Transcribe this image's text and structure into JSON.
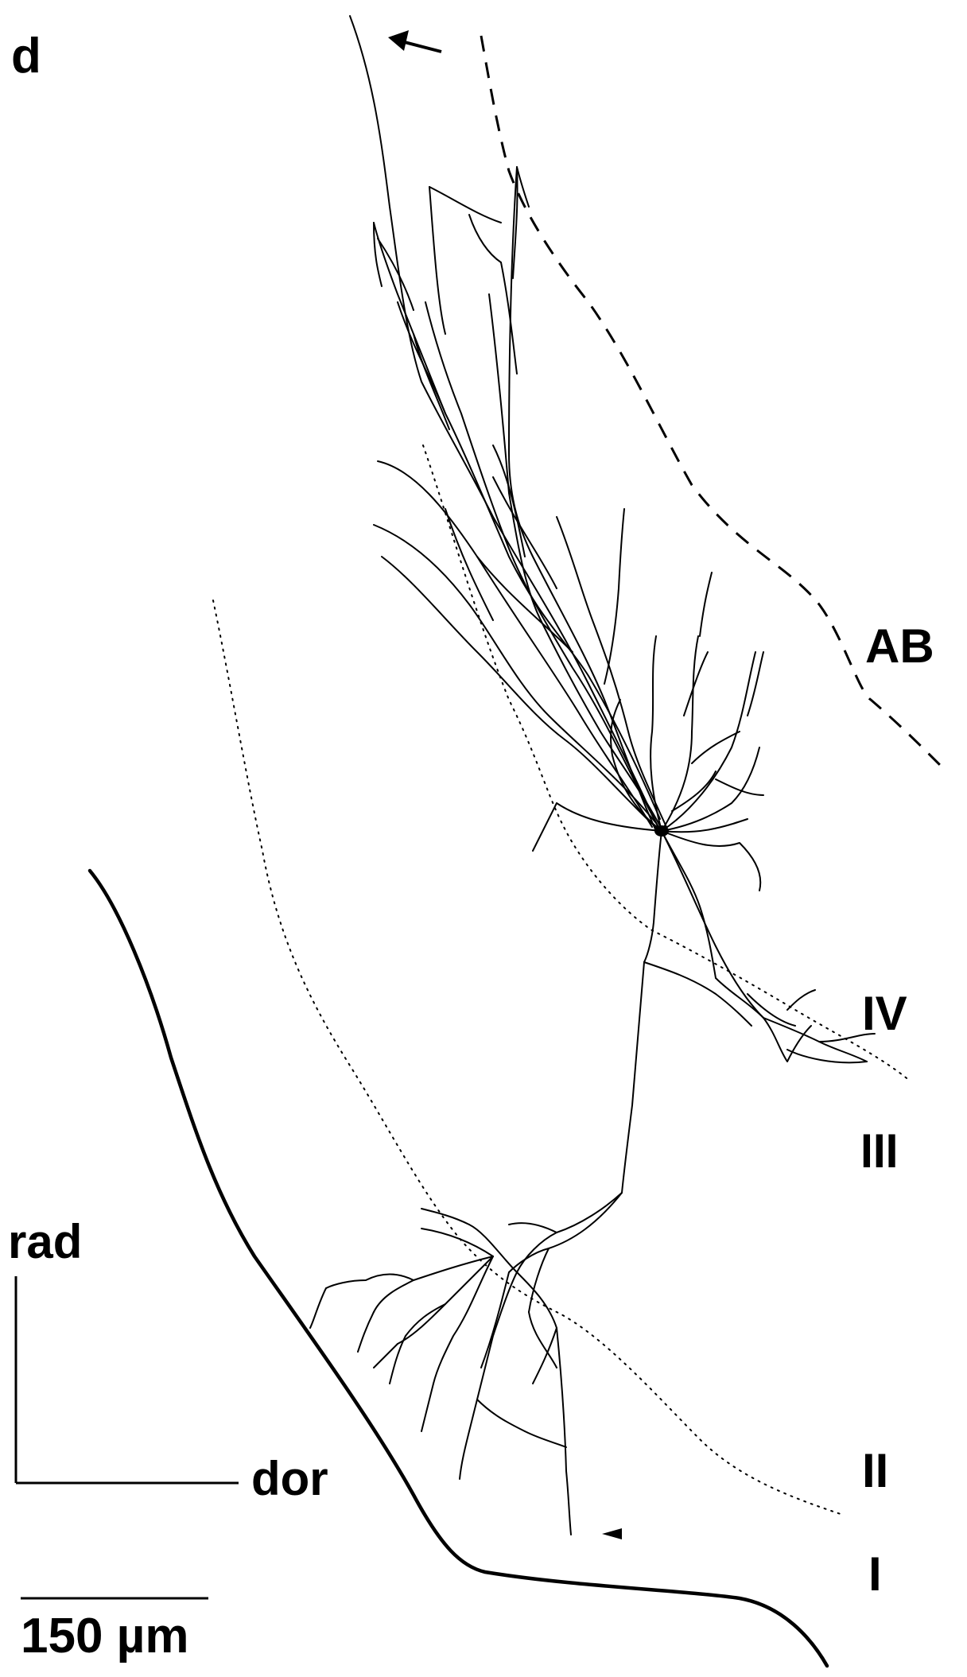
{
  "figure": {
    "panel_letter": "d",
    "layer_labels": {
      "ab": "AB",
      "iv": "IV",
      "iii": "III",
      "ii": "II",
      "i": "I"
    },
    "axes": {
      "radial": "rad",
      "dorsal": "dor"
    },
    "scale_bar": {
      "label": "150 µm"
    }
  }
}
